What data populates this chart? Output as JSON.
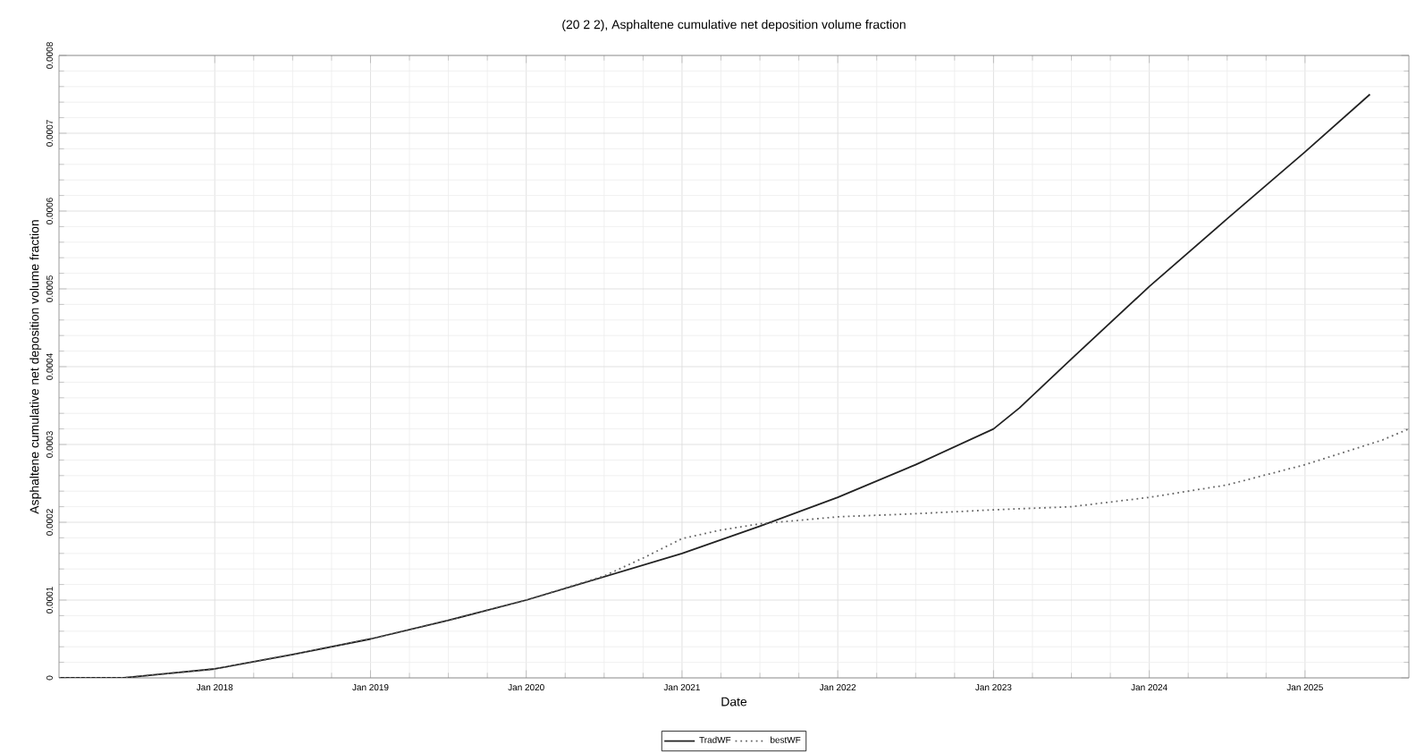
{
  "chart_data": {
    "type": "line",
    "title": "(20 2 2), Asphaltene cumulative net deposition volume fraction",
    "xlabel": "Date",
    "ylabel": "Asphaltene cumulative net deposition volume fraction",
    "series": [
      {
        "name": "TradWF",
        "color": "#222222",
        "line_style": "solid",
        "x": [
          "2017-01",
          "2017-06",
          "2017-09",
          "2018-01",
          "2018-07",
          "2019-01",
          "2019-07",
          "2020-01",
          "2020-07",
          "2021-01",
          "2021-07",
          "2022-01",
          "2022-07",
          "2023-01",
          "2023-03",
          "2023-07",
          "2024-01",
          "2024-07",
          "2025-01",
          "2025-06"
        ],
        "values": [
          0,
          0,
          5e-06,
          1.15e-05,
          3e-05,
          5e-05,
          7.4e-05,
          0.0001,
          0.00013,
          0.00016,
          0.000195,
          0.000232,
          0.000274,
          0.00032,
          0.000347,
          0.00041,
          0.000503,
          0.00059,
          0.000676,
          0.00075
        ]
      },
      {
        "name": "bestWF",
        "color": "#666666",
        "line_style": "dotted",
        "x": [
          "2017-01",
          "2017-06",
          "2017-09",
          "2018-01",
          "2018-07",
          "2019-01",
          "2019-07",
          "2020-01",
          "2020-07",
          "2020-10",
          "2021-01",
          "2021-04",
          "2021-07",
          "2022-01",
          "2022-07",
          "2023-01",
          "2023-07",
          "2024-01",
          "2024-07",
          "2025-01",
          "2025-07",
          "2025-09"
        ],
        "values": [
          0,
          0,
          5e-06,
          1.15e-05,
          3e-05,
          5e-05,
          7.4e-05,
          0.0001,
          0.000131,
          0.000154,
          0.000179,
          0.00019,
          0.000198,
          0.000207,
          0.000211,
          0.000216,
          0.00022,
          0.000232,
          0.000248,
          0.000274,
          0.000306,
          0.00032
        ]
      }
    ],
    "xlim": [
      "2017-01",
      "2025-09"
    ],
    "xticks": [
      {
        "value": "2018-01",
        "label": "Jan 2018"
      },
      {
        "value": "2019-01",
        "label": "Jan 2019"
      },
      {
        "value": "2020-01",
        "label": "Jan 2020"
      },
      {
        "value": "2021-01",
        "label": "Jan 2021"
      },
      {
        "value": "2022-01",
        "label": "Jan 2022"
      },
      {
        "value": "2023-01",
        "label": "Jan 2023"
      },
      {
        "value": "2024-01",
        "label": "Jan 2024"
      },
      {
        "value": "2025-01",
        "label": "Jan 2025"
      }
    ],
    "ylim": [
      0,
      0.0008
    ],
    "yticks": [
      0,
      0.0001,
      0.0002,
      0.0003,
      0.0004,
      0.0005,
      0.0006,
      0.0007,
      0.0008
    ],
    "grid": true,
    "legend": "bottom"
  }
}
